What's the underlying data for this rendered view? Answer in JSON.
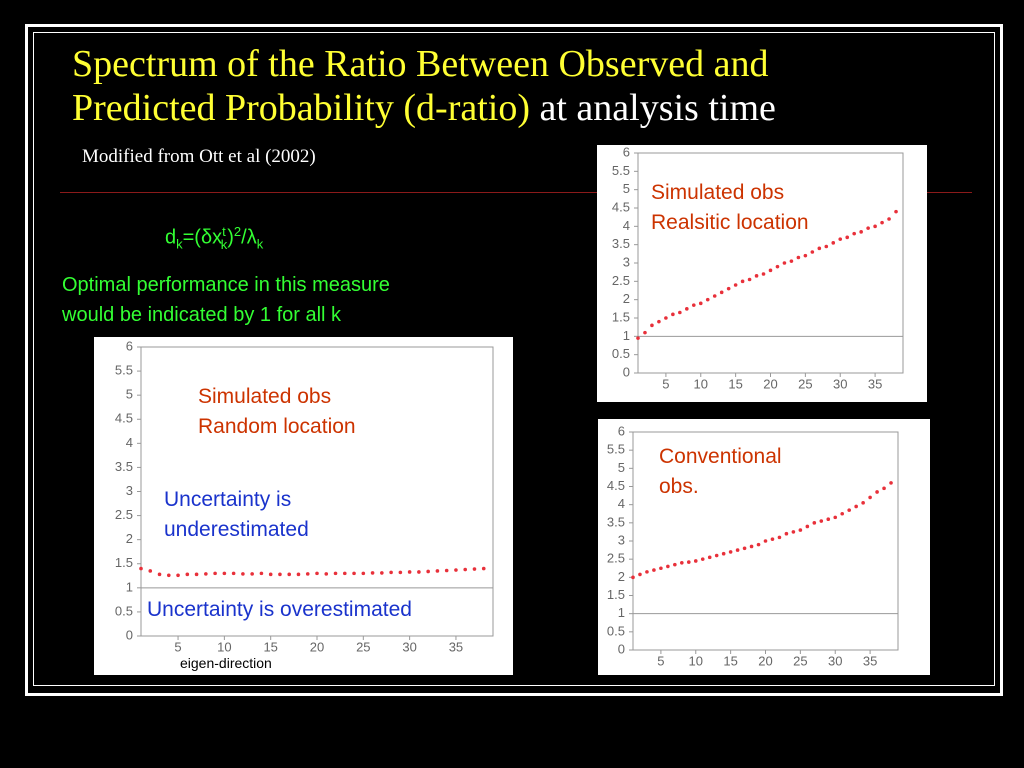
{
  "slide": {
    "title_yellow_1": "Spectrum of the Ratio Between Observed and",
    "title_yellow_2": "Predicted Probability (d-ratio)",
    "title_white": "at analysis time",
    "subtitle": "Modified from Ott et al (2002)",
    "formula": [
      "d",
      "k",
      "=(",
      "δx",
      "t",
      "k",
      ")",
      "2",
      "/λ",
      "k"
    ],
    "note": [
      "Optimal performance in this measure",
      "would be indicated by 1 for all k"
    ]
  },
  "chart_data": [
    {
      "type": "scatter",
      "reference_line": 1,
      "reference_color": "#999999",
      "color": "#e8303a",
      "x": [
        1,
        2,
        3,
        4,
        5,
        6,
        7,
        8,
        9,
        10,
        11,
        12,
        13,
        14,
        15,
        16,
        17,
        18,
        19,
        20,
        21,
        22,
        23,
        24,
        25,
        26,
        27,
        28,
        29,
        30,
        31,
        32,
        33,
        34,
        35,
        36,
        37,
        38
      ],
      "values": [
        0.95,
        1.1,
        1.3,
        1.4,
        1.5,
        1.6,
        1.65,
        1.75,
        1.85,
        1.9,
        2.0,
        2.1,
        2.2,
        2.3,
        2.4,
        2.5,
        2.55,
        2.65,
        2.7,
        2.8,
        2.9,
        3.0,
        3.05,
        3.15,
        3.2,
        3.3,
        3.4,
        3.45,
        3.55,
        3.65,
        3.7,
        3.8,
        3.85,
        3.95,
        4.0,
        4.1,
        4.2,
        4.4
      ],
      "xlim": [
        1,
        39
      ],
      "ylim": [
        0,
        6
      ],
      "xticks": [
        5,
        10,
        15,
        20,
        25,
        30,
        35
      ],
      "yticks": [
        0,
        0.5,
        1,
        1.5,
        2,
        2.5,
        3,
        3.5,
        4,
        4.5,
        5,
        5.5,
        6
      ],
      "annotations": [
        {
          "lines": [
            "Simulated obs",
            "Realsitic location"
          ],
          "color": "#cc3300"
        }
      ]
    },
    {
      "type": "scatter",
      "reference_line": 1,
      "reference_color": "#999999",
      "color": "#e8303a",
      "x": [
        1,
        2,
        3,
        4,
        5,
        6,
        7,
        8,
        9,
        10,
        11,
        12,
        13,
        14,
        15,
        16,
        17,
        18,
        19,
        20,
        21,
        22,
        23,
        24,
        25,
        26,
        27,
        28,
        29,
        30,
        31,
        32,
        33,
        34,
        35,
        36,
        37,
        38
      ],
      "values": [
        1.4,
        1.35,
        1.28,
        1.26,
        1.26,
        1.28,
        1.28,
        1.29,
        1.3,
        1.3,
        1.3,
        1.29,
        1.29,
        1.3,
        1.28,
        1.28,
        1.28,
        1.28,
        1.29,
        1.3,
        1.29,
        1.3,
        1.3,
        1.3,
        1.3,
        1.31,
        1.31,
        1.32,
        1.32,
        1.33,
        1.33,
        1.34,
        1.35,
        1.36,
        1.37,
        1.38,
        1.39,
        1.4
      ],
      "xlim": [
        1,
        39
      ],
      "ylim": [
        0,
        6
      ],
      "xticks": [
        5,
        10,
        15,
        20,
        25,
        30,
        35
      ],
      "yticks": [
        0,
        0.5,
        1,
        1.5,
        2,
        2.5,
        3,
        3.5,
        4,
        4.5,
        5,
        5.5,
        6
      ],
      "xlabel": "eigen-direction",
      "annotations": [
        {
          "lines": [
            "Simulated obs",
            "Random location"
          ],
          "color": "#cc3300"
        },
        {
          "lines": [
            "Uncertainty is",
            "underestimated"
          ],
          "color": "#1a33cc"
        },
        {
          "lines": [
            "Uncertainty is overestimated"
          ],
          "color": "#1a33cc"
        }
      ]
    },
    {
      "type": "scatter",
      "reference_line": 1,
      "reference_color": "#999999",
      "color": "#e8303a",
      "x": [
        1,
        2,
        3,
        4,
        5,
        6,
        7,
        8,
        9,
        10,
        11,
        12,
        13,
        14,
        15,
        16,
        17,
        18,
        19,
        20,
        21,
        22,
        23,
        24,
        25,
        26,
        27,
        28,
        29,
        30,
        31,
        32,
        33,
        34,
        35,
        36,
        37,
        38
      ],
      "values": [
        2.0,
        2.08,
        2.15,
        2.2,
        2.25,
        2.3,
        2.35,
        2.4,
        2.42,
        2.45,
        2.5,
        2.55,
        2.6,
        2.65,
        2.7,
        2.75,
        2.8,
        2.85,
        2.9,
        3.0,
        3.05,
        3.1,
        3.2,
        3.25,
        3.3,
        3.4,
        3.5,
        3.55,
        3.6,
        3.65,
        3.75,
        3.85,
        3.95,
        4.05,
        4.2,
        4.35,
        4.45,
        4.6
      ],
      "xlim": [
        1,
        39
      ],
      "ylim": [
        0,
        6
      ],
      "xticks": [
        5,
        10,
        15,
        20,
        25,
        30,
        35
      ],
      "yticks": [
        0,
        0.5,
        1,
        1.5,
        2,
        2.5,
        3,
        3.5,
        4,
        4.5,
        5,
        5.5,
        6
      ],
      "annotations": [
        {
          "lines": [
            "Conventional",
            "obs."
          ],
          "color": "#cc3300"
        }
      ]
    }
  ]
}
